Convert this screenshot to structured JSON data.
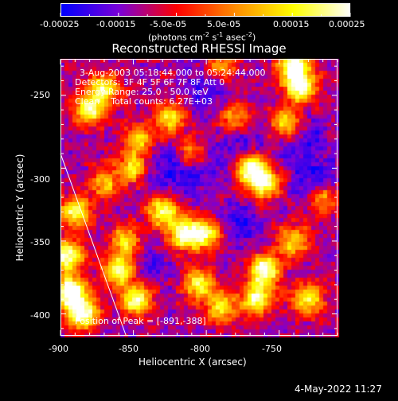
{
  "colorbar": {
    "ticks": [
      "-0.00025",
      "-0.00015",
      "-5.0e-05",
      "5.0e-05",
      "0.00015",
      "0.00025"
    ],
    "unit_prefix": "(photons cm",
    "unit_exp1": "-2",
    "unit_s": " s",
    "unit_exp2": "-1",
    "unit_asec": " asec",
    "unit_exp3": "-2",
    "unit_suffix": ")",
    "range": [
      -0.00025,
      0.00025
    ],
    "colors": [
      "#0000ff",
      "#7a00d8",
      "#ff0000",
      "#ff8c00",
      "#ffff00",
      "#ffffff"
    ]
  },
  "info": {
    "line1": "3-Aug-2003 05:18:44.000 to 05:24:44.000",
    "line2": "Detectors: 3F 4F 5F 6F 7F 8F Att 0",
    "line3": "Energy Range: 25.0 - 50.0 keV",
    "line4": "Clean    Total counts: 6.27E+03",
    "peak": "Position of Peak = [-891,-388]"
  },
  "footer": {
    "date": "4-May-2022 11:27"
  },
  "chart_data": {
    "type": "heatmap",
    "title": "Reconstructed RHESSI Image",
    "xlabel": "Heliocentric X (arcsec)",
    "ylabel": "Heliocentric Y (arcsec)",
    "xlim": [
      -900,
      -710
    ],
    "ylim": [
      -415,
      -225
    ],
    "xticks": [
      -900,
      -850,
      -800,
      -750
    ],
    "yticks": [
      -400,
      -350,
      -300,
      -250
    ],
    "x_tick_labels": [
      "-900",
      "-850",
      "-800",
      "-750"
    ],
    "y_tick_labels": [
      "-400",
      "-350",
      "-300",
      "-250"
    ],
    "limb_line": [
      [
        -900,
        -290
      ],
      [
        -855,
        -415
      ]
    ],
    "peak": [
      -891,
      -388
    ],
    "hotspots": [
      {
        "x": -893,
        "y": -385,
        "v": 1.0
      },
      {
        "x": -885,
        "y": -400,
        "v": 0.95
      },
      {
        "x": -895,
        "y": -360,
        "v": 0.85
      },
      {
        "x": -890,
        "y": -330,
        "v": 0.7
      },
      {
        "x": -860,
        "y": -370,
        "v": 0.85
      },
      {
        "x": -848,
        "y": -390,
        "v": 0.8
      },
      {
        "x": -855,
        "y": -350,
        "v": 0.6
      },
      {
        "x": -880,
        "y": -260,
        "v": 0.75
      },
      {
        "x": -870,
        "y": -245,
        "v": 0.7
      },
      {
        "x": -850,
        "y": -300,
        "v": 0.6
      },
      {
        "x": -845,
        "y": -280,
        "v": 0.55
      },
      {
        "x": -825,
        "y": -265,
        "v": 0.6
      },
      {
        "x": -830,
        "y": -330,
        "v": 0.75
      },
      {
        "x": -815,
        "y": -345,
        "v": 0.85
      },
      {
        "x": -800,
        "y": -345,
        "v": 0.7
      },
      {
        "x": -805,
        "y": -380,
        "v": 0.65
      },
      {
        "x": -790,
        "y": -395,
        "v": 0.6
      },
      {
        "x": -770,
        "y": -300,
        "v": 0.95
      },
      {
        "x": -760,
        "y": -310,
        "v": 0.8
      },
      {
        "x": -740,
        "y": -230,
        "v": 0.95
      },
      {
        "x": -735,
        "y": -245,
        "v": 0.8
      },
      {
        "x": -745,
        "y": -270,
        "v": 0.65
      },
      {
        "x": -760,
        "y": -370,
        "v": 0.9
      },
      {
        "x": -765,
        "y": -390,
        "v": 0.8
      },
      {
        "x": -740,
        "y": -350,
        "v": 0.6
      },
      {
        "x": -730,
        "y": -390,
        "v": 0.65
      },
      {
        "x": -720,
        "y": -320,
        "v": 0.55
      },
      {
        "x": -790,
        "y": -230,
        "v": 0.5
      },
      {
        "x": -810,
        "y": -290,
        "v": 0.5
      },
      {
        "x": -870,
        "y": -310,
        "v": 0.5
      },
      {
        "x": -780,
        "y": -265,
        "v": 0.45
      }
    ],
    "coldspots": [
      {
        "x": -810,
        "y": -300,
        "v": 0.6
      },
      {
        "x": -775,
        "y": -290,
        "v": 0.5
      },
      {
        "x": -725,
        "y": -310,
        "v": 0.6
      },
      {
        "x": -735,
        "y": -280,
        "v": 0.5
      },
      {
        "x": -800,
        "y": -245,
        "v": 0.4
      },
      {
        "x": -830,
        "y": -300,
        "v": 0.4
      },
      {
        "x": -840,
        "y": -365,
        "v": 0.4
      },
      {
        "x": -780,
        "y": -340,
        "v": 0.45
      }
    ]
  }
}
